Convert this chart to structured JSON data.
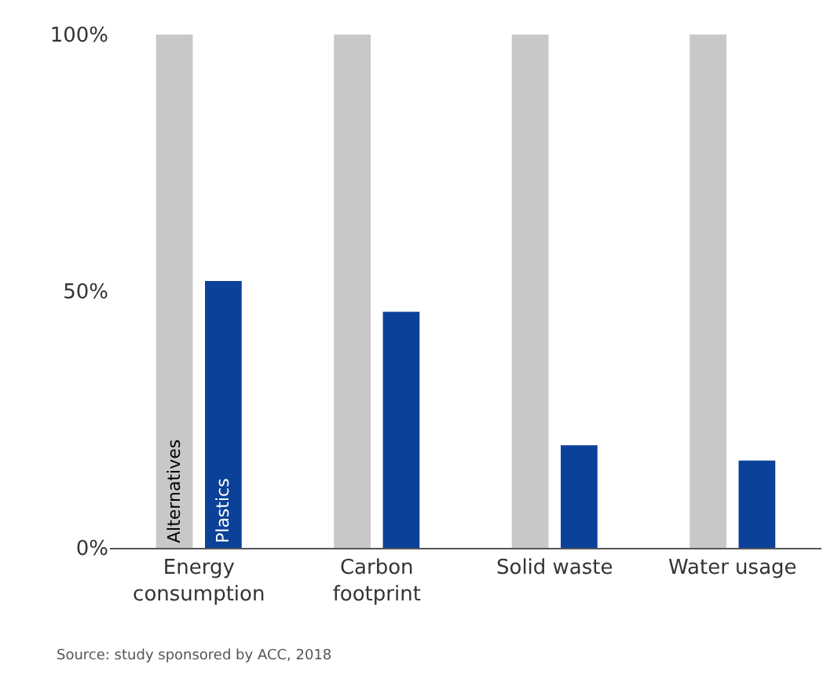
{
  "chart_data": {
    "type": "bar",
    "categories": [
      "Energy consumption",
      "Carbon footprint",
      "Solid waste",
      "Water usage"
    ],
    "series": [
      {
        "name": "Alternatives",
        "color": "#c8c8c8",
        "values": [
          100,
          100,
          100,
          100
        ]
      },
      {
        "name": "Plastics",
        "color": "#0c4199",
        "values": [
          52,
          46,
          20,
          17
        ]
      }
    ],
    "ylim": [
      0,
      100
    ],
    "yticks": [
      {
        "value": 0,
        "label": "0%"
      },
      {
        "value": 50,
        "label": "50%"
      },
      {
        "value": 100,
        "label": "100%"
      }
    ],
    "legend": false,
    "annotations": [
      "Source: study sponsored by ACC, 2018"
    ]
  }
}
